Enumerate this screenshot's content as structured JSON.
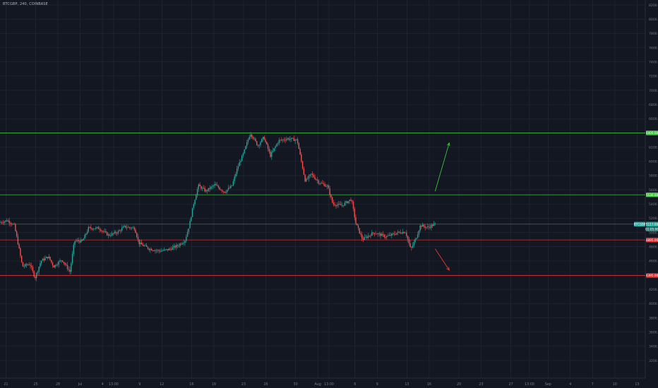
{
  "symbol_title": "BTCGBP, 240, COINBASE",
  "colors": {
    "background": "#131722",
    "grid": "#252a38",
    "up": "#26a69a",
    "down": "#ef5350",
    "resistance": "#3fbf3f",
    "support": "#d32f2f",
    "current": "#5f8f7a",
    "axis_text": "#787b86",
    "label_text": "#ffffff"
  },
  "chart_data": {
    "type": "candlestick",
    "title": "",
    "xlabel": "",
    "ylabel": "",
    "ylim": [
      3000,
      8600
    ],
    "grid": true,
    "price_ticks": [
      "8200.00",
      "8000.00",
      "7800.00",
      "7600.00",
      "7400.00",
      "7200.00",
      "7000.00",
      "6800.00",
      "6600.00",
      "6400.00",
      "6200.00",
      "6000.00",
      "5800.00",
      "5600.00",
      "5400.00",
      "5200.00",
      "5000.00",
      "4800.00",
      "4600.00",
      "4400.00",
      "4200.00",
      "4000.00",
      "3800.00",
      "3600.00",
      "3400.00",
      "3200.00"
    ],
    "time_ticks": [
      {
        "label": "21",
        "day": 21
      },
      {
        "label": "25",
        "day": 25
      },
      {
        "label": "28",
        "day": 28
      },
      {
        "label": "Jul",
        "day": 31
      },
      {
        "label": "4",
        "day": 34
      },
      {
        "label": "13:00",
        "day": 35.5
      },
      {
        "label": "9",
        "day": 39
      },
      {
        "label": "12",
        "day": 42
      },
      {
        "label": "16",
        "day": 46
      },
      {
        "label": "19",
        "day": 49
      },
      {
        "label": "23",
        "day": 53
      },
      {
        "label": "26",
        "day": 56
      },
      {
        "label": "30",
        "day": 60
      },
      {
        "label": "Aug",
        "day": 63
      },
      {
        "label": "13:00",
        "day": 64.5
      },
      {
        "label": "6",
        "day": 68
      },
      {
        "label": "9",
        "day": 71
      },
      {
        "label": "13",
        "day": 75
      },
      {
        "label": "16",
        "day": 78
      },
      {
        "label": "20",
        "day": 82
      },
      {
        "label": "23",
        "day": 85
      },
      {
        "label": "27",
        "day": 89
      },
      {
        "label": "13:00",
        "day": 91.5
      },
      {
        "label": "Sep",
        "day": 94
      },
      {
        "label": "4",
        "day": 97
      },
      {
        "label": "7",
        "day": 100
      },
      {
        "label": "10",
        "day": 103
      },
      {
        "label": "13",
        "day": 106
      }
    ],
    "x_start_day": 20.2,
    "x_end_day": 107.1,
    "horizontal_lines": [
      {
        "name": "resistance-upper",
        "price": 6400,
        "color": "#3fbf3f",
        "label": "6400.00"
      },
      {
        "name": "resistance-lower",
        "price": 5530,
        "color": "#3fbf3f",
        "label": "5530.00"
      },
      {
        "name": "support-upper",
        "price": 4895,
        "color": "#d32f2f",
        "label": "4895.00"
      },
      {
        "name": "support-lower",
        "price": 4395,
        "color": "#d32f2f",
        "label": "4395.00"
      }
    ],
    "current_price": {
      "price": 5117,
      "label": "5117.00",
      "symbol": "BTCGBP"
    },
    "countdown_label": "01:05:06",
    "projection_arrows": [
      {
        "name": "bullish-arrow",
        "from_day": 78.8,
        "from_price": 5580,
        "to_day": 80.7,
        "to_price": 6260,
        "color": "#3fbf3f"
      },
      {
        "name": "bearish-arrow",
        "from_day": 78.8,
        "from_price": 4770,
        "to_day": 80.7,
        "to_price": 4470,
        "color": "#e53935"
      }
    ],
    "anchors": [
      {
        "day": 20.2,
        "price": 5140
      },
      {
        "day": 21.3,
        "price": 5170
      },
      {
        "day": 22.2,
        "price": 5100
      },
      {
        "day": 22.8,
        "price": 4800
      },
      {
        "day": 23.3,
        "price": 4520
      },
      {
        "day": 24.3,
        "price": 4560
      },
      {
        "day": 25.0,
        "price": 4360
      },
      {
        "day": 25.8,
        "price": 4600
      },
      {
        "day": 26.8,
        "price": 4660
      },
      {
        "day": 27.5,
        "price": 4520
      },
      {
        "day": 28.6,
        "price": 4620
      },
      {
        "day": 29.7,
        "price": 4450
      },
      {
        "day": 30.3,
        "price": 4880
      },
      {
        "day": 31.4,
        "price": 4880
      },
      {
        "day": 32.2,
        "price": 5060
      },
      {
        "day": 33.6,
        "price": 5060
      },
      {
        "day": 34.9,
        "price": 4960
      },
      {
        "day": 36.2,
        "price": 5010
      },
      {
        "day": 37.0,
        "price": 5080
      },
      {
        "day": 38.4,
        "price": 5060
      },
      {
        "day": 39.0,
        "price": 4850
      },
      {
        "day": 40.4,
        "price": 4770
      },
      {
        "day": 41.8,
        "price": 4740
      },
      {
        "day": 43.0,
        "price": 4760
      },
      {
        "day": 44.3,
        "price": 4820
      },
      {
        "day": 45.2,
        "price": 4890
      },
      {
        "day": 45.8,
        "price": 5110
      },
      {
        "day": 46.3,
        "price": 5380
      },
      {
        "day": 47.0,
        "price": 5660
      },
      {
        "day": 48.0,
        "price": 5580
      },
      {
        "day": 49.2,
        "price": 5670
      },
      {
        "day": 50.5,
        "price": 5570
      },
      {
        "day": 51.5,
        "price": 5650
      },
      {
        "day": 52.3,
        "price": 5920
      },
      {
        "day": 53.1,
        "price": 6120
      },
      {
        "day": 54.0,
        "price": 6400
      },
      {
        "day": 55.0,
        "price": 6220
      },
      {
        "day": 55.8,
        "price": 6340
      },
      {
        "day": 56.7,
        "price": 6080
      },
      {
        "day": 57.8,
        "price": 6290
      },
      {
        "day": 59.0,
        "price": 6320
      },
      {
        "day": 60.3,
        "price": 6300
      },
      {
        "day": 60.9,
        "price": 5980
      },
      {
        "day": 61.4,
        "price": 5720
      },
      {
        "day": 62.2,
        "price": 5820
      },
      {
        "day": 63.3,
        "price": 5700
      },
      {
        "day": 64.4,
        "price": 5650
      },
      {
        "day": 65.1,
        "price": 5400
      },
      {
        "day": 66.3,
        "price": 5380
      },
      {
        "day": 67.6,
        "price": 5470
      },
      {
        "day": 68.2,
        "price": 5130
      },
      {
        "day": 69.1,
        "price": 4900
      },
      {
        "day": 70.6,
        "price": 5000
      },
      {
        "day": 72.3,
        "price": 4940
      },
      {
        "day": 73.9,
        "price": 5000
      },
      {
        "day": 74.9,
        "price": 5010
      },
      {
        "day": 75.6,
        "price": 4760
      },
      {
        "day": 76.3,
        "price": 4920
      },
      {
        "day": 76.9,
        "price": 5100
      },
      {
        "day": 77.9,
        "price": 5070
      },
      {
        "day": 78.8,
        "price": 5117
      }
    ]
  }
}
